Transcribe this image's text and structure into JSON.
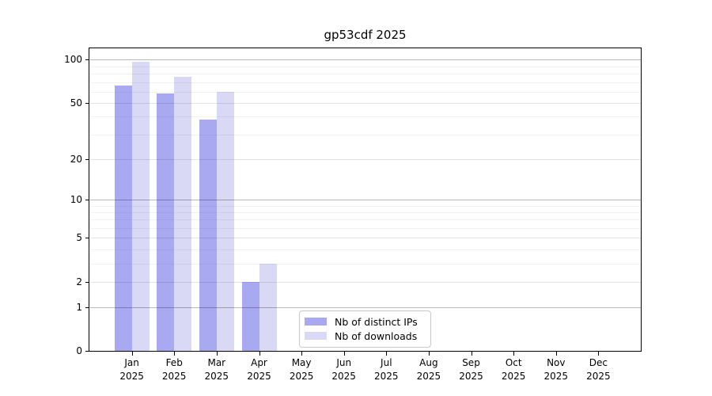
{
  "chart_data": {
    "type": "bar",
    "title": "gp53cdf 2025",
    "categories": [
      "Jan",
      "Feb",
      "Mar",
      "Apr",
      "May",
      "Jun",
      "Jul",
      "Aug",
      "Sep",
      "Oct",
      "Nov",
      "Dec"
    ],
    "category_year": "2025",
    "series": [
      {
        "name": "Nb of distinct IPs",
        "color": "#a9a9f2",
        "values": [
          66,
          58,
          38,
          2,
          0,
          0,
          0,
          0,
          0,
          0,
          0,
          0
        ]
      },
      {
        "name": "Nb of downloads",
        "color": "#d9d9f6",
        "values": [
          97,
          76,
          60,
          3,
          0,
          0,
          0,
          0,
          0,
          0,
          0,
          0
        ]
      }
    ],
    "xlabel": "",
    "ylabel": "",
    "yscale": "log1p",
    "ylim": [
      0,
      120
    ],
    "yticks": [
      0,
      1,
      2,
      5,
      10,
      20,
      50,
      100
    ],
    "yticks_minor": [
      3,
      4,
      6,
      7,
      8,
      9,
      30,
      40,
      60,
      70,
      80,
      90
    ],
    "grid": true,
    "legend_position": "lower center",
    "axis_color": "#000000",
    "background_color": "#ffffff"
  }
}
